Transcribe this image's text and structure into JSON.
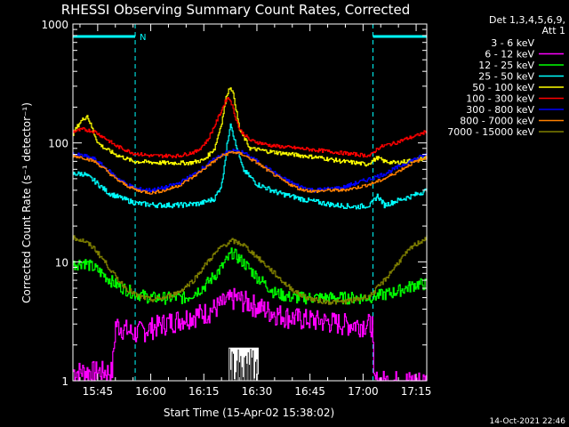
{
  "chart_data": {
    "type": "line",
    "title": "RHESSI Observing Summary Count Rates, Corrected",
    "xlabel": "Start Time (15-Apr-02 15:38:02)",
    "ylabel": "Corrected Count Rate (s⁻¹ detector⁻¹)",
    "y_scale": "log",
    "ylim": [
      1,
      1000
    ],
    "xlim_minutes": [
      0,
      100
    ],
    "x_ticks": [
      {
        "label": "15:45",
        "minute": 7
      },
      {
        "label": "16:00",
        "minute": 22
      },
      {
        "label": "16:15",
        "minute": 37
      },
      {
        "label": "16:30",
        "minute": 52
      },
      {
        "label": "16:45",
        "minute": 67
      },
      {
        "label": "17:00",
        "minute": 82
      },
      {
        "label": "17:15",
        "minute": 97
      }
    ],
    "y_ticks": [
      {
        "label": "1",
        "value": 1
      },
      {
        "label": "10",
        "value": 10
      },
      {
        "label": "100",
        "value": 100
      },
      {
        "label": "1000",
        "value": 1000
      }
    ],
    "legend": {
      "header": [
        "Det 1,3,4,5,6,9,",
        "Att 1"
      ],
      "position": "right"
    },
    "night_marker_label": "N",
    "night_markers": [
      [
        0,
        17.6
      ],
      [
        84.8,
        100
      ]
    ],
    "series": [
      {
        "name": "3 - 6 keV",
        "color": "#000000",
        "x": [
          0,
          44,
          44.5,
          52,
          52.5,
          100
        ],
        "y": [
          1,
          1,
          1.9,
          1.9,
          1,
          1
        ]
      },
      {
        "name": "6 - 12 keV",
        "color": "#ff00ff",
        "x": [
          0,
          11,
          12,
          17,
          25,
          33,
          38,
          43,
          46,
          50,
          56,
          62,
          70,
          78,
          83,
          84.5,
          85,
          100
        ],
        "y": [
          1.2,
          1.2,
          3.0,
          2.5,
          3.0,
          3.5,
          3.8,
          4.6,
          5.0,
          4.5,
          3.8,
          3.4,
          3.2,
          3.0,
          3.0,
          3.0,
          1.0,
          1.0
        ]
      },
      {
        "name": "12 - 25 keV",
        "color": "#00ff00",
        "x": [
          0,
          3,
          7,
          12,
          17,
          22,
          27,
          32,
          37,
          42,
          45,
          48,
          52,
          57,
          62,
          67,
          72,
          77,
          82,
          86,
          90,
          94,
          97,
          100
        ],
        "y": [
          9.5,
          10,
          8.5,
          6.5,
          5.5,
          5.0,
          5.0,
          5.0,
          6.2,
          9.0,
          12,
          10,
          7.5,
          5.5,
          5.0,
          5.0,
          5.0,
          5.0,
          5.0,
          5.2,
          5.5,
          6.0,
          6.5,
          6.5
        ]
      },
      {
        "name": "25 - 50 keV",
        "color": "#00ffff",
        "x": [
          0,
          3,
          6,
          10,
          14,
          18,
          24,
          30,
          36,
          40,
          42,
          43.5,
          44.5,
          46,
          48,
          52,
          58,
          66,
          74,
          80,
          84,
          86,
          88,
          92,
          96,
          100
        ],
        "y": [
          55,
          55,
          48,
          38,
          34,
          31,
          30,
          30,
          31,
          34,
          45,
          95,
          150,
          95,
          60,
          45,
          38,
          33,
          30,
          29,
          30,
          36,
          30,
          33,
          36,
          40
        ]
      },
      {
        "name": "50 - 100 keV",
        "color": "#ffff00",
        "x": [
          0,
          2,
          4,
          5.5,
          7,
          9,
          12,
          17,
          25,
          33,
          37,
          40,
          42,
          43.5,
          44.5,
          45.5,
          47,
          50,
          55,
          62,
          70,
          76,
          80,
          83,
          86,
          88,
          91,
          94,
          97,
          100
        ],
        "y": [
          120,
          150,
          170,
          130,
          100,
          90,
          80,
          70,
          68,
          68,
          72,
          90,
          150,
          260,
          300,
          240,
          130,
          90,
          85,
          80,
          75,
          70,
          68,
          66,
          75,
          70,
          68,
          70,
          72,
          75
        ]
      },
      {
        "name": "100 - 300 keV",
        "color": "#ff0000",
        "x": [
          0,
          3,
          6,
          9,
          12,
          17,
          22,
          30,
          35,
          38,
          40,
          42,
          43.5,
          44.5,
          45.5,
          47,
          50,
          56,
          64,
          72,
          80,
          84,
          86,
          88,
          91,
          94,
          97,
          100
        ],
        "y": [
          125,
          130,
          125,
          110,
          95,
          82,
          78,
          78,
          85,
          105,
          140,
          190,
          240,
          230,
          180,
          130,
          105,
          95,
          90,
          85,
          80,
          78,
          90,
          95,
          100,
          108,
          115,
          125
        ]
      },
      {
        "name": "300 - 800 keV",
        "color": "#0000ff",
        "x": [
          0,
          3,
          6,
          9,
          12,
          15,
          18,
          22,
          26,
          30,
          34,
          38,
          42,
          45,
          48,
          52,
          56,
          60,
          64,
          68,
          72,
          76,
          80,
          84,
          88,
          92,
          96,
          100
        ],
        "y": [
          80,
          78,
          73,
          62,
          52,
          45,
          41,
          40,
          42,
          46,
          54,
          66,
          80,
          86,
          83,
          70,
          58,
          49,
          43,
          40,
          41,
          42,
          46,
          50,
          55,
          63,
          72,
          80
        ]
      },
      {
        "name": "800 - 7000 keV",
        "color": "#ff8000",
        "x": [
          0,
          3,
          6,
          9,
          12,
          15,
          18,
          22,
          26,
          30,
          34,
          38,
          42,
          45,
          48,
          52,
          56,
          60,
          64,
          68,
          72,
          76,
          80,
          84,
          88,
          92,
          96,
          100
        ],
        "y": [
          78,
          75,
          70,
          60,
          50,
          44,
          40,
          38,
          40,
          44,
          52,
          64,
          78,
          84,
          80,
          68,
          56,
          47,
          41,
          39,
          40,
          40,
          42,
          45,
          50,
          58,
          68,
          76
        ]
      },
      {
        "name": "7000 - 15000 keV",
        "color": "#808000",
        "x": [
          0,
          3,
          6,
          9,
          12,
          15,
          18,
          22,
          26,
          30,
          34,
          38,
          42,
          45,
          48,
          52,
          56,
          60,
          64,
          68,
          72,
          76,
          80,
          84,
          88,
          92,
          96,
          100
        ],
        "y": [
          16,
          15,
          13,
          10,
          7.5,
          6,
          5.2,
          4.8,
          5.0,
          5.6,
          7.0,
          10,
          13.5,
          15,
          14,
          11,
          8.5,
          6.5,
          5.3,
          4.8,
          4.6,
          4.6,
          4.8,
          5.2,
          7.0,
          10,
          13.5,
          16
        ]
      }
    ]
  },
  "footer": {
    "timestamp": "14-Oct-2021 22:46"
  }
}
